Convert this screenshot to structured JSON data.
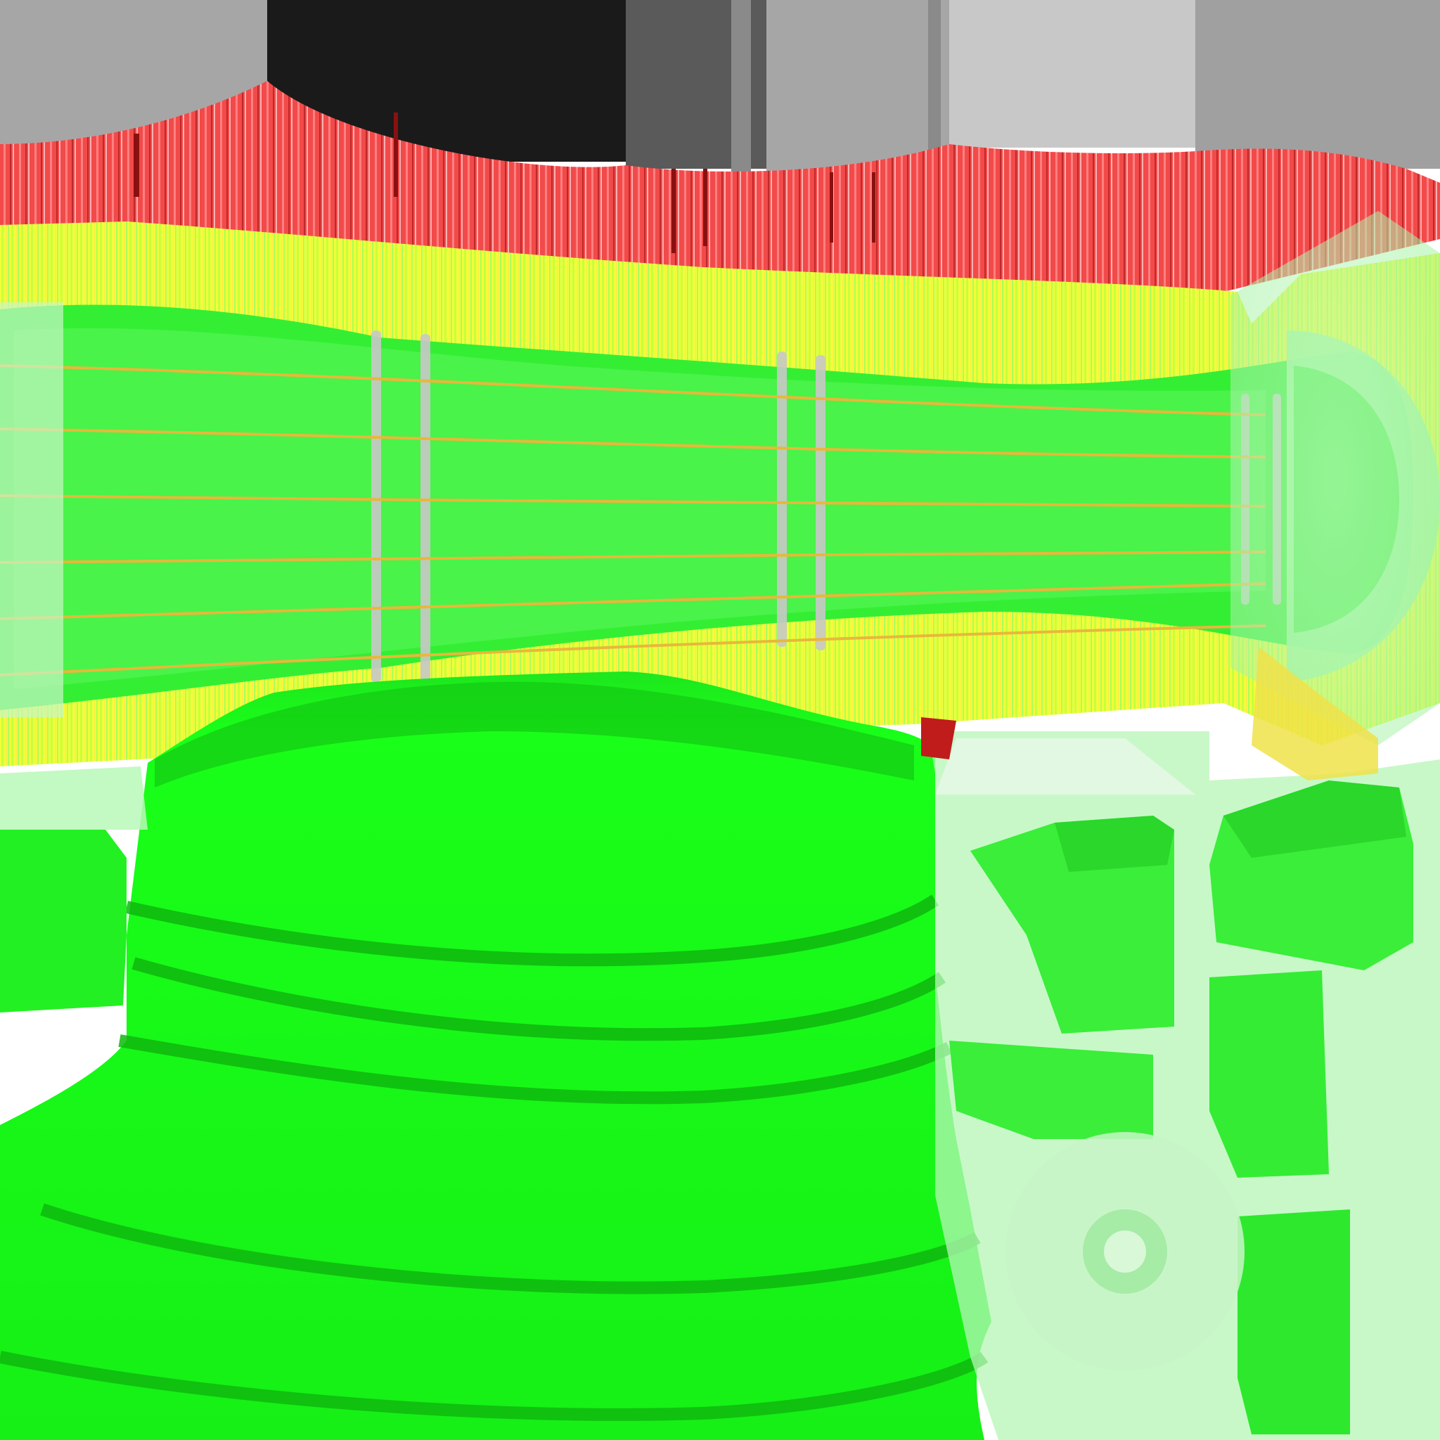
{
  "image": {
    "kind": "uv-texture-atlas",
    "description_free": true,
    "palette": {
      "background": "#ffffff",
      "bright_green": "#19ff19",
      "dark_green": "#0fb80f",
      "pale_green": "#9cf59c",
      "yellow": "#ffff33",
      "orange_yellow": "#f2d23a",
      "red": "#f04848",
      "dark_red": "#b01c1c",
      "gray_light": "#a6a6a6",
      "gray_mid": "#7a7a7a",
      "gray_dark": "#5a5a5a",
      "black": "#1a1a1a",
      "silver": "#c8c8c8"
    }
  }
}
